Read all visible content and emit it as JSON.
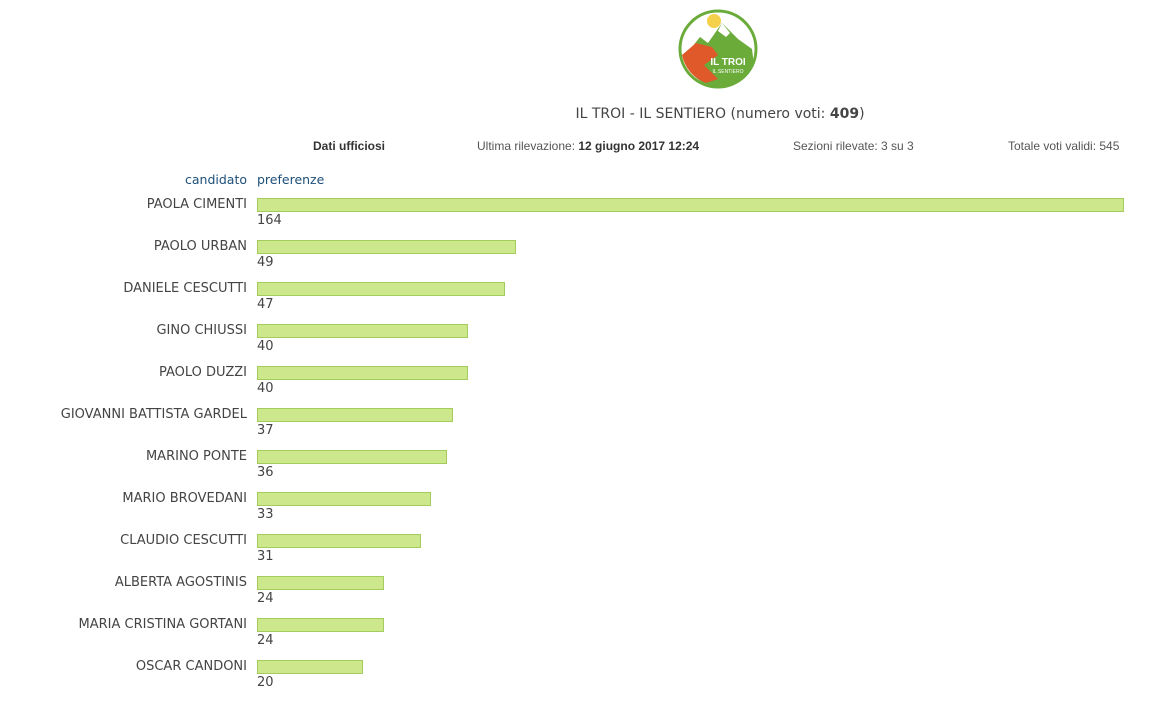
{
  "logo": {
    "text": "IL TROI IL SENTIERO",
    "colors": {
      "orange": "#e0592a",
      "green": "#6aab3a"
    }
  },
  "title": {
    "party": "IL TROI - IL SENTIERO",
    "votes_label": "(numero voti: ",
    "votes": "409",
    "close": ")"
  },
  "info": {
    "status": "Dati ufficiosi",
    "last_label": "Ultima rilevazione: ",
    "last_value": "12 giugno 2017 12:24",
    "sections": "Sezioni rilevate: 3 su 3",
    "total": "Totale voti validi: 545"
  },
  "headers": {
    "candidate": "candidato",
    "preferences": "preferenze"
  },
  "chart_data": {
    "type": "bar",
    "orientation": "horizontal",
    "categories": [
      "PAOLA CIMENTI",
      "PAOLO URBAN",
      "DANIELE CESCUTTI",
      "GINO CHIUSSI",
      "PAOLO DUZZI",
      "GIOVANNI BATTISTA GARDEL",
      "MARINO PONTE",
      "MARIO BROVEDANI",
      "CLAUDIO CESCUTTI",
      "ALBERTA AGOSTINIS",
      "MARIA CRISTINA GORTANI",
      "OSCAR CANDONI"
    ],
    "values": [
      164,
      49,
      47,
      40,
      40,
      37,
      36,
      33,
      31,
      24,
      24,
      20
    ],
    "xlim": [
      0,
      164
    ],
    "bar_color": "#cde88c"
  }
}
